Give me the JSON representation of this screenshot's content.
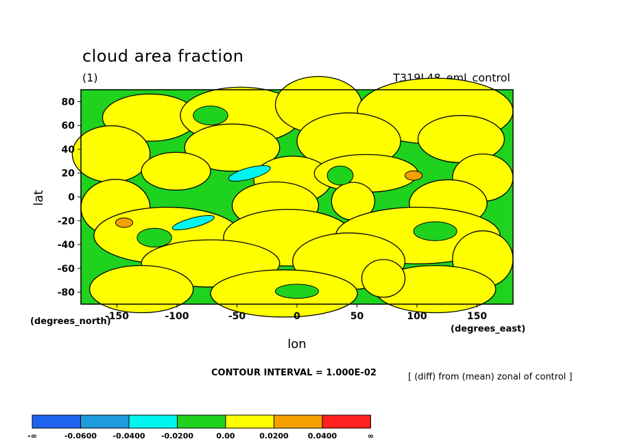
{
  "chart_data": {
    "type": "heatmap",
    "title": "cloud area fraction",
    "subtitle_left": "(1)",
    "subtitle_right": "T319L48_eml_control",
    "xlabel": "lon",
    "ylabel": "lat",
    "xunits": "(degrees_east)",
    "yunits": "(degrees_north)",
    "xlim": [
      -180,
      180
    ],
    "ylim": [
      -90,
      90
    ],
    "xticks": [
      -150,
      -100,
      -50,
      0,
      50,
      100,
      150
    ],
    "yticks": [
      80,
      60,
      40,
      20,
      0,
      -20,
      -40,
      -60,
      -80
    ],
    "contour_interval_text": "CONTOUR INTERVAL = 1.000E-02",
    "note": "[ (diff) from (mean) zonal of control ]",
    "colorbar": {
      "levels": [
        "-∞",
        "-0.0600",
        "-0.0400",
        "-0.0200",
        "0.00",
        "0.0200",
        "0.0400",
        "∞"
      ],
      "colors": [
        "#1e64f0",
        "#1e9bdc",
        "#00f5f0",
        "#1ed21e",
        "#ffff00",
        "#f5a000",
        "#ff2020"
      ]
    },
    "field_colors": {
      "negative": "#1ed21e",
      "positive": "#ffff00",
      "strong_negative": "#00f5f0",
      "strong_positive": "#f5a000"
    }
  }
}
